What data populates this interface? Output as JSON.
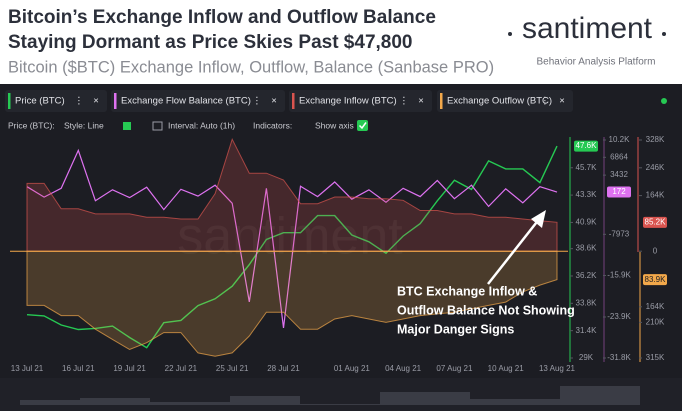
{
  "header": {
    "title_lines": [
      "Bitcoin’s Exchange Inflow and Outflow Balance",
      "Staying Dormant as Price Skies Past $47,800"
    ],
    "subtitle": "Bitcoin ($BTC) Exchange Inflow, Outflow, Balance (Sanbase PRO)",
    "logo": "santiment",
    "tagline": "Behavior Analysis Platform"
  },
  "toolbar": {
    "series_label": "Price (BTC):",
    "style": "Style: Line",
    "interval": "Interval: Auto (1h)",
    "indicators": "Indicators:",
    "show_axis": "Show axis"
  },
  "chart_data": {
    "type": "line",
    "watermark": "santiment",
    "annotation": [
      "BTC Exchange Inflow &",
      "Outflow Balance Not Showing",
      "Major Danger Signs"
    ],
    "categories": [
      "13 Jul 21",
      null,
      null,
      "16 Jul 21",
      null,
      null,
      "19 Jul 21",
      null,
      null,
      "22 Jul 21",
      null,
      null,
      "25 Jul 21",
      null,
      null,
      "28 Jul 21",
      null,
      null,
      null,
      "01 Aug 21",
      null,
      null,
      "04 Aug 21",
      null,
      null,
      "07 Aug 21",
      null,
      null,
      "10 Aug 21",
      null,
      null,
      "13 Aug 21"
    ],
    "ylim": [
      29000,
      48400
    ],
    "yticks": [
      {
        "value": 45700,
        "label": "45.7K"
      },
      {
        "value": 43300,
        "label": "43.3K"
      },
      {
        "value": 40900,
        "label": "40.9K"
      },
      {
        "value": 38600,
        "label": "38.6K"
      },
      {
        "value": 36200,
        "label": "36.2K"
      },
      {
        "value": 33800,
        "label": "33.8K"
      },
      {
        "value": 31400,
        "label": "31.4K"
      },
      {
        "value": 29000,
        "label": "29K"
      }
    ],
    "y2lim": [
      -31800,
      10200
    ],
    "y2ticks": [
      {
        "value": 10200,
        "label": "10.2K"
      },
      6864,
      3432,
      -7973,
      {
        "value": -15900,
        "label": "-15.9K"
      },
      {
        "value": -23900,
        "label": "-23.9K"
      },
      {
        "value": -31800,
        "label": "-31.8K"
      }
    ],
    "y3lim": [
      -315000,
      328000
    ],
    "y3ticks": [
      {
        "value": 328000,
        "label": "328K"
      },
      {
        "value": 246000,
        "label": "246K"
      },
      {
        "value": 164000,
        "label": "164K"
      },
      0,
      {
        "value": -164000,
        "label": "164K"
      },
      {
        "value": -210000,
        "label": "210K"
      },
      {
        "value": -315000,
        "label": "315K"
      }
    ],
    "series": [
      {
        "name": "Price (BTC)",
        "color": "#26c953",
        "axis": "y",
        "values": [
          32800,
          32700,
          31900,
          31500,
          31600,
          31800,
          30800,
          29900,
          32100,
          32300,
          33600,
          34200,
          35300,
          37200,
          39400,
          40000,
          40000,
          41500,
          41500,
          39800,
          39200,
          38200,
          39700,
          40800,
          42800,
          44600,
          43800,
          46300,
          45600,
          45600,
          44400,
          47600
        ],
        "value_labels": [
          null,
          null,
          null,
          null,
          null,
          null,
          null,
          null,
          null,
          null,
          null,
          null,
          null,
          null,
          null,
          null,
          null,
          null,
          null,
          null,
          null,
          null,
          null,
          null,
          null,
          null,
          null,
          null,
          null,
          null,
          null,
          "47.6K"
        ]
      },
      {
        "name": "Exchange Flow Balance (BTC)",
        "color": "#de72f0",
        "axis": "y2",
        "values": [
          1200,
          -800,
          900,
          8200,
          -1500,
          600,
          -900,
          1100,
          -3200,
          700,
          -600,
          1500,
          -2000,
          -21000,
          900,
          -26000,
          1300,
          -700,
          2100,
          -1200,
          600,
          -1800,
          900,
          -700,
          2400,
          -1100,
          1500,
          -2600,
          800,
          -1900,
          1200,
          172
        ],
        "value_labels": [
          null,
          null,
          null,
          null,
          null,
          null,
          null,
          null,
          null,
          null,
          null,
          null,
          null,
          null,
          null,
          null,
          null,
          null,
          null,
          null,
          null,
          null,
          null,
          null,
          null,
          null,
          null,
          null,
          null,
          null,
          null,
          "172"
        ]
      },
      {
        "name": "Exchange Inflow (BTC)",
        "color": "#d9544f",
        "axis": "y3",
        "values": [
          200000,
          200000,
          125000,
          125000,
          110000,
          110000,
          110000,
          100000,
          100000,
          95000,
          95000,
          170000,
          330000,
          230000,
          230000,
          210000,
          140000,
          140000,
          160000,
          160000,
          155000,
          155000,
          150000,
          120000,
          120000,
          110000,
          110000,
          100000,
          100000,
          95000,
          90000,
          85200
        ],
        "value_labels": [
          null,
          null,
          null,
          null,
          null,
          null,
          null,
          null,
          null,
          null,
          null,
          null,
          null,
          null,
          null,
          null,
          null,
          null,
          null,
          null,
          null,
          null,
          null,
          null,
          null,
          null,
          null,
          null,
          null,
          null,
          null,
          "85.2K"
        ]
      },
      {
        "name": "Exchange Outflow (BTC)",
        "color": "#f2a84a",
        "axis": "y3",
        "values": [
          -160000,
          -160000,
          -190000,
          -190000,
          -230000,
          -260000,
          -290000,
          -270000,
          -240000,
          -240000,
          -300000,
          -310000,
          -300000,
          -250000,
          -180000,
          -180000,
          -230000,
          -230000,
          -200000,
          -190000,
          -200000,
          -210000,
          -200000,
          -190000,
          -185000,
          -180000,
          -170000,
          -160000,
          -150000,
          -120000,
          -100000,
          -83900
        ],
        "value_labels": [
          null,
          null,
          null,
          null,
          null,
          null,
          null,
          null,
          null,
          null,
          null,
          null,
          null,
          null,
          null,
          null,
          null,
          null,
          null,
          null,
          null,
          null,
          null,
          null,
          null,
          null,
          null,
          null,
          null,
          null,
          null,
          "83.9K"
        ]
      }
    ]
  }
}
